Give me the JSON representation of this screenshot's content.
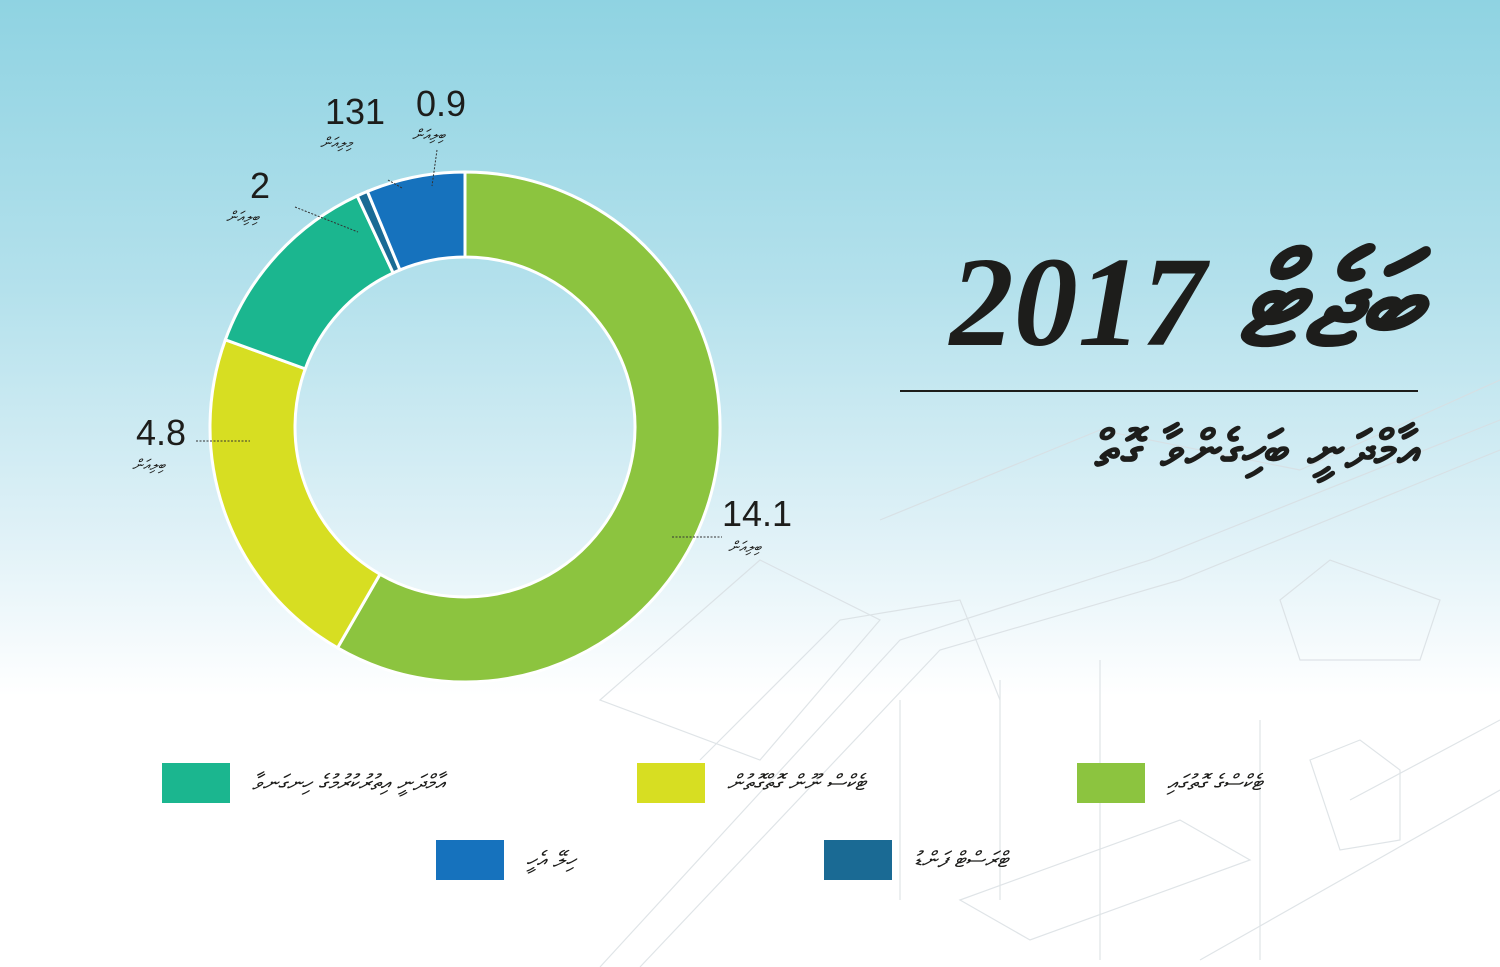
{
  "title": {
    "year_line": "ބަޖެޓް 2017",
    "subtitle": "އާމްދަނީ ބަހިގެންވާ ގޮތް"
  },
  "chart_data": {
    "type": "pie",
    "variant": "donut",
    "title": "ބަޖެޓް 2017 — އާމްދަނީ ބަހިގެންވާ ގޮތް",
    "slices": [
      {
        "label": "ޓެކްސްގެ ގޮތުގައި",
        "value": 14.1,
        "value_label": "14.1",
        "unit": "ބިލިއަން",
        "color": "#8cc43f",
        "start_deg": 0,
        "end_deg": 210
      },
      {
        "label": "ޓެކްސް ނޫން ގޮތްގޮތުން",
        "value": 4.8,
        "value_label": "4.8",
        "unit": "ބިލިއަން",
        "color": "#d7de22",
        "start_deg": 210,
        "end_deg": 290
      },
      {
        "label": "އާމްދަނީ އިތުރުކުރުމުގެ ހިނގަނވާ",
        "value": 2,
        "value_label": "2",
        "unit": "ބިލިއަން",
        "color": "#1bb68f",
        "start_deg": 290,
        "end_deg": 335
      },
      {
        "label": "ޓްރަސްޓް ފަންޑު",
        "value": 131,
        "value_label": "131",
        "unit": "މިލިއަން",
        "color": "#1a6a94",
        "start_deg": 335,
        "end_deg": 337.5
      },
      {
        "label": "ހިލޭ އެހީ",
        "value": 0.9,
        "value_label": "0.9",
        "unit": "ބިލިއަން",
        "color": "#1672bd",
        "start_deg": 337.5,
        "end_deg": 360
      }
    ],
    "legend_position": "bottom"
  },
  "labels": {
    "tax": {
      "value": "14.1",
      "unit": "ބިލިއަން"
    },
    "nontax": {
      "value": "4.8",
      "unit": "ބިލިއަން"
    },
    "other": {
      "value": "2",
      "unit": "ބިލިއަން"
    },
    "trust": {
      "value": "131",
      "unit": "މިލިއަން"
    },
    "grants": {
      "value": "0.9",
      "unit": "ބިލިއަން"
    }
  },
  "legend": [
    {
      "label": "އާމްދަނީ އިތުރުކުރުމުގެ ހިނގަނވާ",
      "color": "#1bb68f"
    },
    {
      "label": "ޓެކްސް ނޫން ގޮތްގޮތުން",
      "color": "#d7de22"
    },
    {
      "label": "ޓެކްސްގެ ގޮތުގައި",
      "color": "#8cc43f"
    },
    {
      "label": "ހިލޭ އެހީ",
      "color": "#1672bd"
    },
    {
      "label": "ޓްރަސްޓް ފަންޑު",
      "color": "#1a6a94"
    }
  ]
}
